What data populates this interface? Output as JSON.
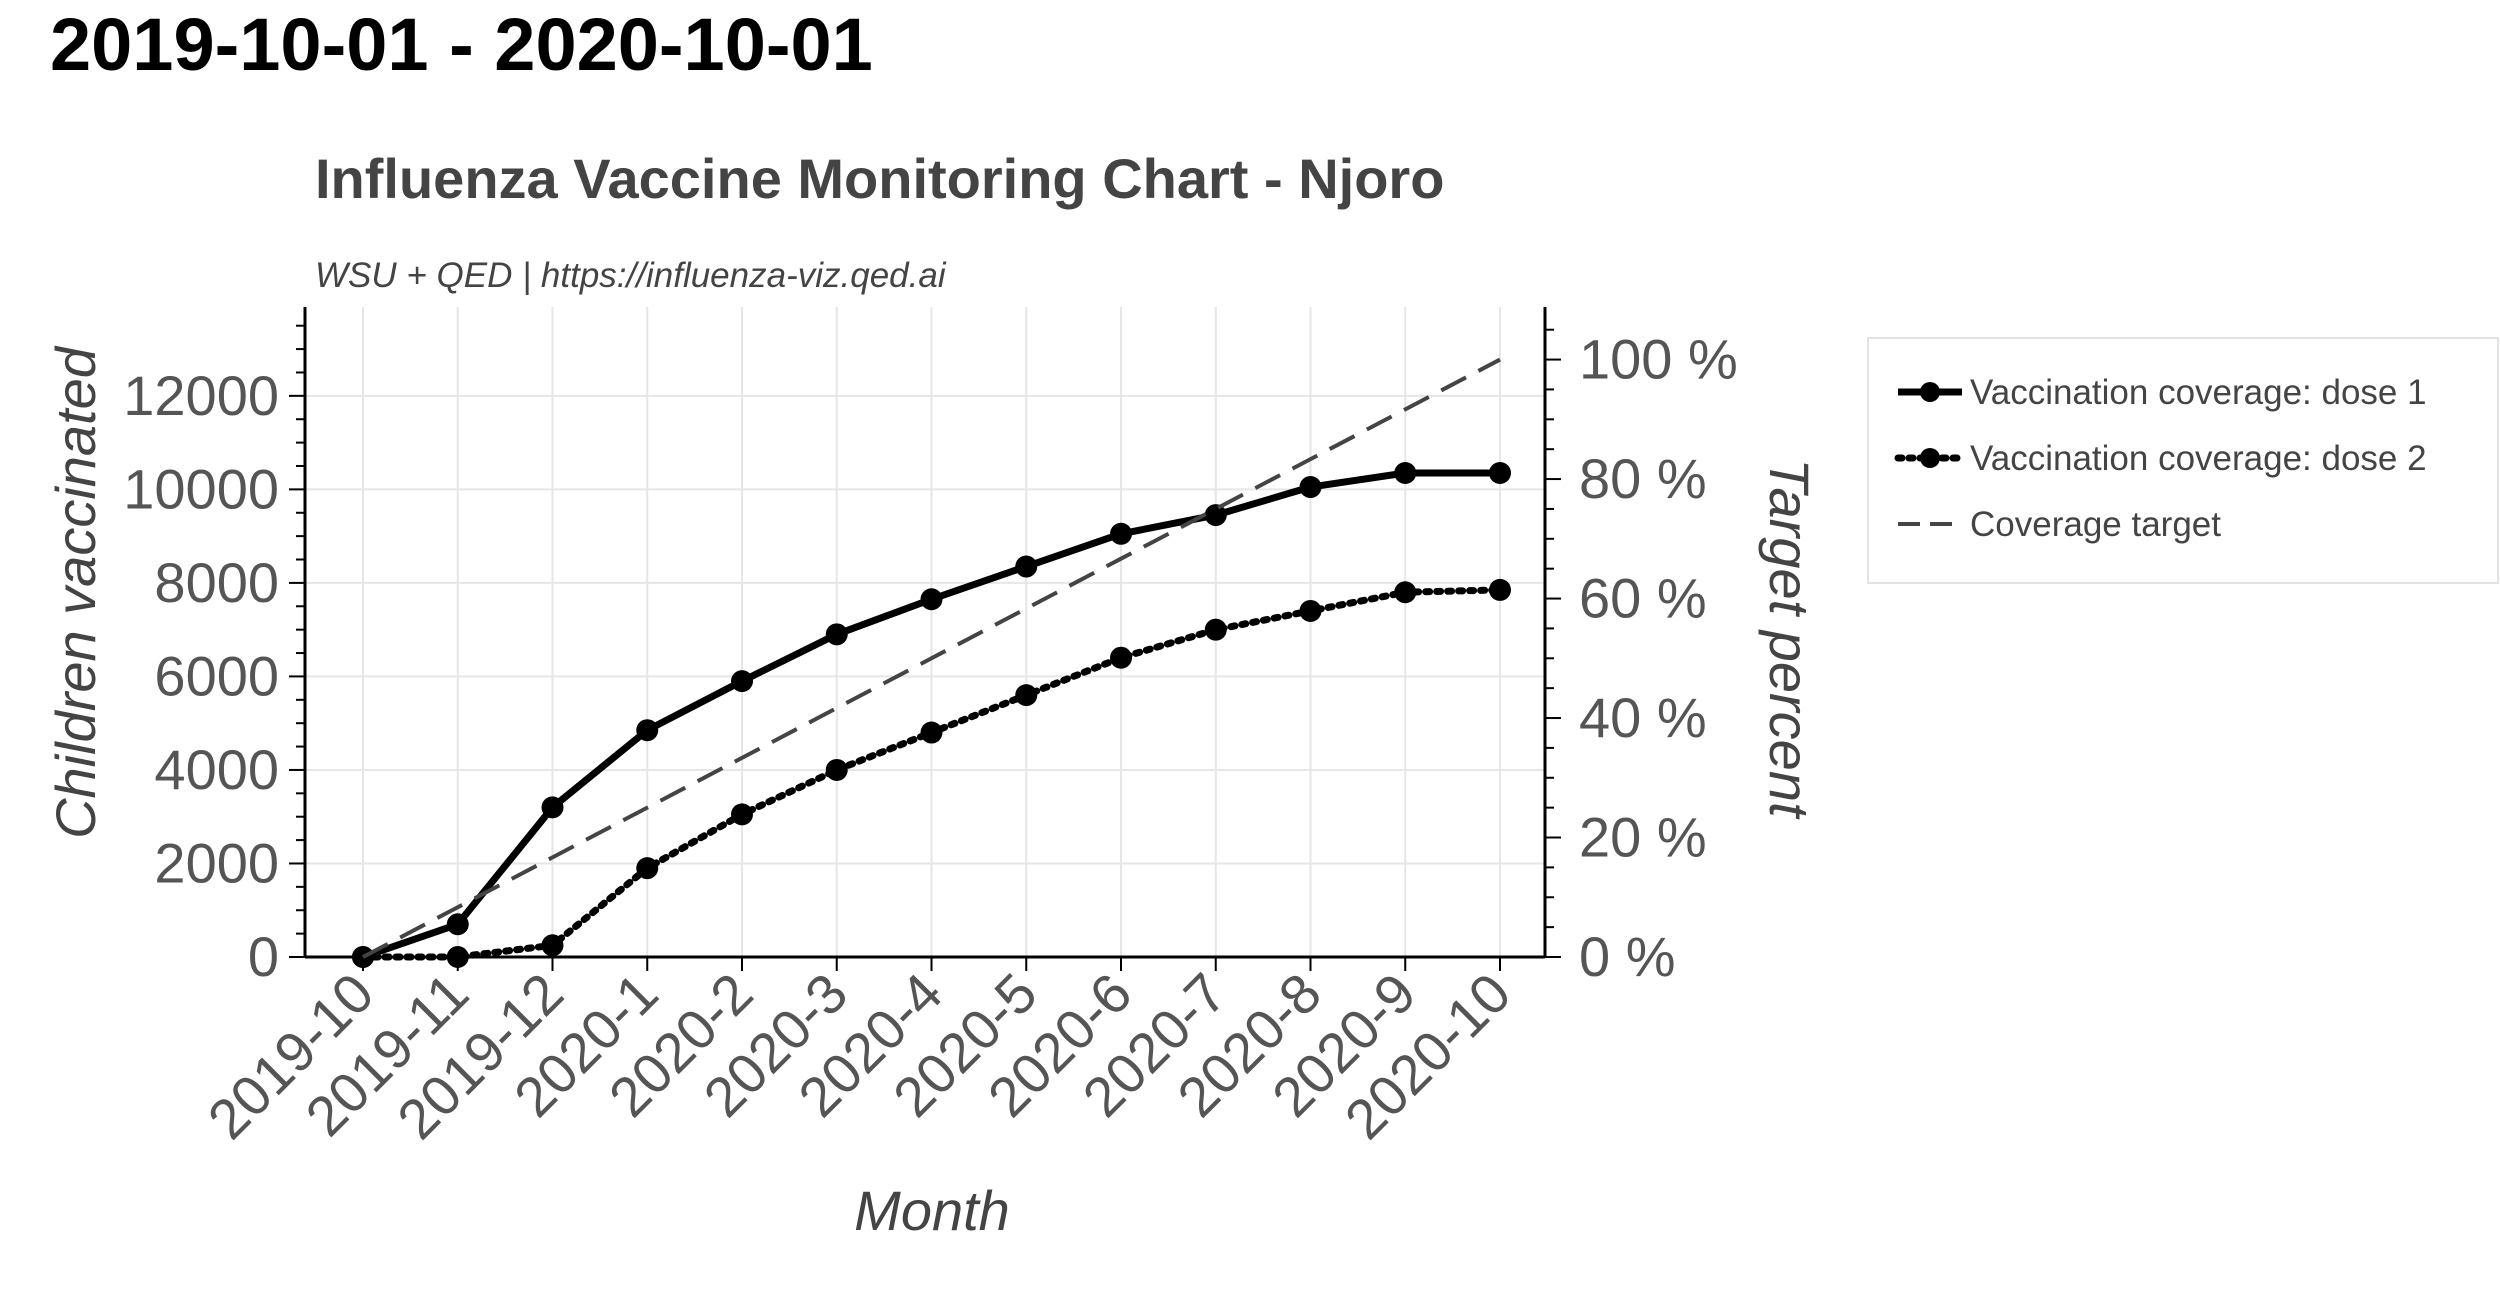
{
  "page": {
    "heading": "2019-10-01 - 2020-10-01"
  },
  "chart_data": {
    "type": "line",
    "title": "Influenza Vaccine Monitoring Chart - Njoro",
    "subtitle": "WSU + QED | https://influenza-viz.qed.ai",
    "xlabel": "Month",
    "ylabel": "Children vaccinated",
    "y2label": "Target percent",
    "categories": [
      "2019-10",
      "2019-11",
      "2019-12",
      "2020-1",
      "2020-2",
      "2020-3",
      "2020-4",
      "2020-5",
      "2020-6",
      "2020-7",
      "2020-8",
      "2020-9",
      "2020-10"
    ],
    "ylim": [
      0,
      13900
    ],
    "yticks": [
      0,
      2000,
      4000,
      6000,
      8000,
      10000,
      12000
    ],
    "ytick_labels": [
      "0",
      "2000",
      "4000",
      "6000",
      "8000",
      "10000",
      "12000"
    ],
    "y2lim": [
      0,
      108.8
    ],
    "y2ticks": [
      0,
      20,
      40,
      60,
      80,
      100
    ],
    "y2tick_labels": [
      "0 %",
      "20 %",
      "40 %",
      "60 %",
      "80 %",
      "100 %"
    ],
    "grid": true,
    "legend_position": "right",
    "series": [
      {
        "name": "Vaccination coverage: dose 1",
        "style": "solid",
        "markers": true,
        "color": "#000000",
        "values": [
          0,
          700,
          3200,
          4850,
          5900,
          6900,
          7650,
          8350,
          9050,
          9450,
          10050,
          10350,
          10350
        ]
      },
      {
        "name": "Vaccination coverage: dose 2",
        "style": "dotted",
        "markers": true,
        "color": "#000000",
        "values": [
          0,
          0,
          250,
          1900,
          3050,
          4000,
          4800,
          5600,
          6400,
          7000,
          7400,
          7800,
          7850
        ]
      },
      {
        "name": "Coverage target",
        "style": "dashed",
        "markers": false,
        "color": "#444444",
        "axis": "right",
        "values": [
          0,
          8.33,
          16.67,
          25,
          33.33,
          41.67,
          50,
          58.33,
          66.67,
          75,
          83.33,
          91.67,
          100
        ]
      }
    ]
  }
}
